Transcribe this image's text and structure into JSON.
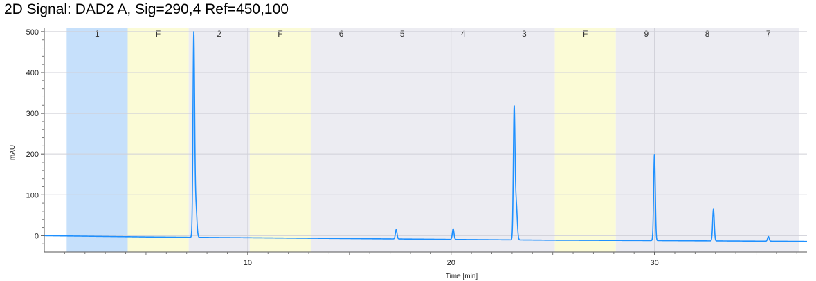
{
  "title": "2D Signal: DAD2 A, Sig=290,4 Ref=450,100",
  "chart_data": {
    "type": "line",
    "title": "2D Signal: DAD2 A, Sig=290,4 Ref=450,100",
    "xlabel": "Time [min]",
    "ylabel": "mAU",
    "xlim": [
      0,
      37.5
    ],
    "ylim": [
      -40,
      510
    ],
    "xticks": [
      10,
      20,
      30
    ],
    "yticks": [
      0,
      100,
      200,
      300,
      400,
      500
    ],
    "grid": true,
    "legend": "none",
    "colors": {
      "trace": "#1e90ff",
      "band_blue": "#c6e0fb",
      "band_yellow": "#fbfbd6",
      "band_gray": "#ececf2",
      "grid": "#d0d0d8"
    },
    "fraction_bands": [
      {
        "label": "1",
        "start": 1.1,
        "end": 4.1,
        "color": "blue"
      },
      {
        "label": "F",
        "start": 4.1,
        "end": 7.1,
        "color": "yellow"
      },
      {
        "label": "2",
        "start": 7.1,
        "end": 10.1,
        "color": "gray"
      },
      {
        "label": "F",
        "start": 10.1,
        "end": 13.1,
        "color": "yellow"
      },
      {
        "label": "6",
        "start": 13.1,
        "end": 16.1,
        "color": "gray"
      },
      {
        "label": "5",
        "start": 16.1,
        "end": 19.1,
        "color": "gray"
      },
      {
        "label": "4",
        "start": 19.1,
        "end": 22.1,
        "color": "gray"
      },
      {
        "label": "3",
        "start": 22.1,
        "end": 25.1,
        "color": "gray"
      },
      {
        "label": "F",
        "start": 25.1,
        "end": 28.1,
        "color": "yellow"
      },
      {
        "label": "9",
        "start": 28.1,
        "end": 31.1,
        "color": "gray"
      },
      {
        "label": "8",
        "start": 31.1,
        "end": 34.1,
        "color": "gray"
      },
      {
        "label": "7",
        "start": 34.1,
        "end": 37.1,
        "color": "gray"
      }
    ],
    "baseline": [
      [
        0,
        0
      ],
      [
        5,
        -3
      ],
      [
        10,
        -5
      ],
      [
        15,
        -7
      ],
      [
        20,
        -9
      ],
      [
        25,
        -11
      ],
      [
        30,
        -12
      ],
      [
        37.5,
        -14
      ]
    ],
    "peaks": [
      {
        "x": 7.35,
        "y": 490,
        "shoulder_y": 225
      },
      {
        "x": 17.3,
        "y": 15
      },
      {
        "x": 20.1,
        "y": 17
      },
      {
        "x": 23.1,
        "y": 308,
        "shoulder_y": 240
      },
      {
        "x": 30.0,
        "y": 200
      },
      {
        "x": 32.9,
        "y": 65
      },
      {
        "x": 35.6,
        "y": -2
      }
    ]
  }
}
